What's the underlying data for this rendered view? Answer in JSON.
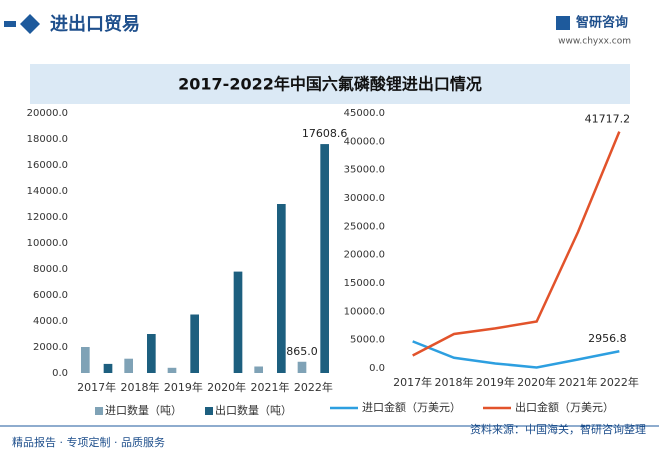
{
  "header": {
    "title": "进出口贸易",
    "brand": "智研咨询",
    "url": "www.chyxx.com"
  },
  "title": "2017-2022年中国六氟磷酸锂进出口情况",
  "chart_data": [
    {
      "type": "bar",
      "categories": [
        "2017年",
        "2018年",
        "2019年",
        "2020年",
        "2021年",
        "2022年"
      ],
      "series": [
        {
          "name": "进口数量（吨）",
          "color": "#7fa2b6",
          "values": [
            2000,
            1100,
            400,
            0,
            500,
            865
          ],
          "value_labels": [
            null,
            null,
            null,
            null,
            null,
            "865.0"
          ]
        },
        {
          "name": "出口数量（吨）",
          "color": "#1d5f7f",
          "values": [
            700,
            3000,
            4500,
            7800,
            13000,
            17608.6
          ],
          "value_labels": [
            null,
            null,
            null,
            null,
            null,
            "17608.6"
          ]
        }
      ],
      "ylim": [
        0,
        20000
      ],
      "yticks": [
        {
          "value": 0,
          "label": "0.0"
        },
        {
          "value": 2000,
          "label": "2000.0"
        },
        {
          "value": 4000,
          "label": "4000.0"
        },
        {
          "value": 6000,
          "label": "6000.0"
        },
        {
          "value": 8000,
          "label": "8000.0"
        },
        {
          "value": 10000,
          "label": "10000.0"
        },
        {
          "value": 12000,
          "label": "12000.0"
        },
        {
          "value": 14000,
          "label": "14000.0"
        },
        {
          "value": 16000,
          "label": "16000.0"
        },
        {
          "value": 18000,
          "label": "18000.0"
        },
        {
          "value": 20000,
          "label": "20000.0"
        }
      ]
    },
    {
      "type": "line",
      "categories": [
        "2017年",
        "2018年",
        "2019年",
        "2020年",
        "2021年",
        "2022年"
      ],
      "series": [
        {
          "name": "进口金额（万美元）",
          "color": "#2d9fe0",
          "values": [
            4700,
            1800,
            800,
            100,
            1500,
            2956.8
          ],
          "value_labels": [
            null,
            null,
            null,
            null,
            null,
            "2956.8"
          ]
        },
        {
          "name": "出口金额（万美元）",
          "color": "#e2532b",
          "values": [
            2200,
            6000,
            7000,
            8200,
            24000,
            41717.2
          ],
          "value_labels": [
            null,
            null,
            null,
            null,
            null,
            "41717.2"
          ]
        }
      ],
      "ylim": [
        0,
        45000
      ],
      "yticks": [
        {
          "value": 0,
          "label": "0.0"
        },
        {
          "value": 5000,
          "label": "5000.0"
        },
        {
          "value": 10000,
          "label": "10000.0"
        },
        {
          "value": 15000,
          "label": "15000.0"
        },
        {
          "value": 20000,
          "label": "20000.0"
        },
        {
          "value": 25000,
          "label": "25000.0"
        },
        {
          "value": 30000,
          "label": "30000.0"
        },
        {
          "value": 35000,
          "label": "35000.0"
        },
        {
          "value": 40000,
          "label": "40000.0"
        },
        {
          "value": 45000,
          "label": "45000.0"
        }
      ]
    }
  ],
  "footer": {
    "slogan": "精品报告 · 专项定制 · 品质服务",
    "source": "资料来源：中国海关，智研咨询整理"
  }
}
